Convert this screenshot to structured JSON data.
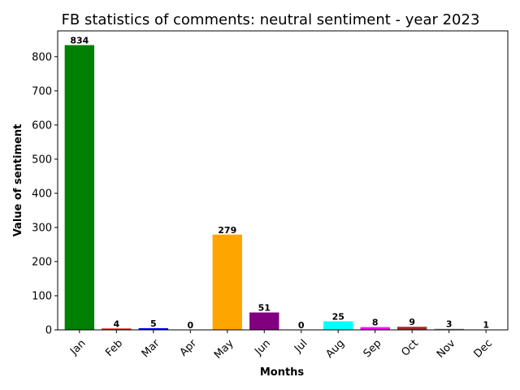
{
  "chart_data": {
    "type": "bar",
    "title": "FB statistics of comments: neutral sentiment - year 2023",
    "xlabel": "Months",
    "ylabel": "Value of sentiment",
    "categories": [
      "Jan",
      "Feb",
      "Mar",
      "Apr",
      "May",
      "Jun",
      "Jul",
      "Aug",
      "Sep",
      "Oct",
      "Nov",
      "Dec"
    ],
    "values": [
      834,
      4,
      5,
      0,
      279,
      51,
      0,
      25,
      8,
      9,
      3,
      1
    ],
    "colors": [
      "#008000",
      "#ff0000",
      "#0000ff",
      "#ffff00",
      "#ffa500",
      "#800080",
      "#ffc0cb",
      "#00ffff",
      "#ff00ff",
      "#a52a2a",
      "#808080",
      "#000000"
    ],
    "ylim": [
      0,
      875.7
    ],
    "yticks": [
      0,
      100,
      200,
      300,
      400,
      500,
      600,
      700,
      800
    ],
    "grid": false,
    "legend": "none"
  }
}
